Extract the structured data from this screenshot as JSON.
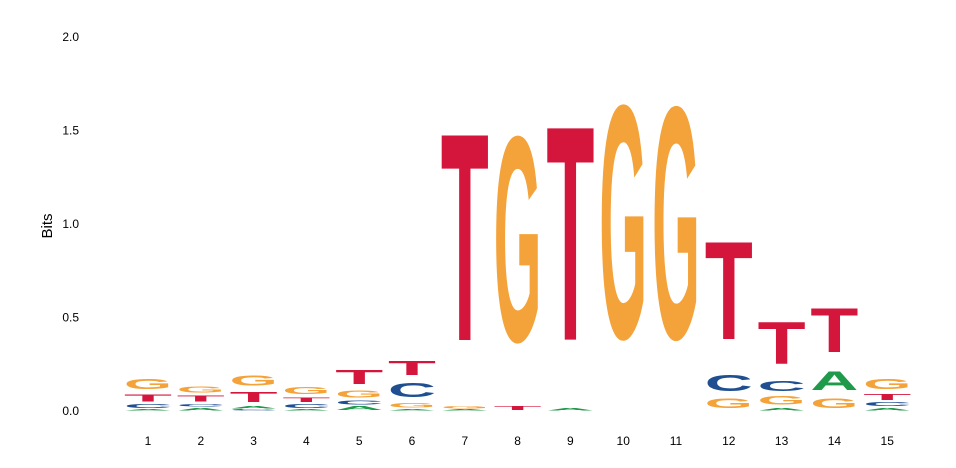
{
  "chart_data": {
    "type": "sequence-logo",
    "title": "",
    "xlabel": "",
    "ylabel": "Bits",
    "ylim": [
      0,
      2.0
    ],
    "yticks": [
      "0.0",
      "0.5",
      "1.0",
      "1.5",
      "2.0"
    ],
    "ytick_values": [
      0,
      0.5,
      1.0,
      1.5,
      2.0
    ],
    "grid": false,
    "colors": {
      "A": "#1f9a4a",
      "C": "#1f4f91",
      "G": "#f4a23a",
      "T": "#d4163c"
    },
    "positions": [
      {
        "label": "1",
        "letters": [
          [
            "A",
            0.01
          ],
          [
            "C",
            0.03
          ],
          [
            "T",
            0.06
          ],
          [
            "G",
            0.09
          ]
        ]
      },
      {
        "label": "2",
        "letters": [
          [
            "A",
            0.02
          ],
          [
            "C",
            0.02
          ],
          [
            "T",
            0.05
          ],
          [
            "G",
            0.05
          ]
        ]
      },
      {
        "label": "3",
        "letters": [
          [
            "C",
            0.01
          ],
          [
            "A",
            0.02
          ],
          [
            "T",
            0.09
          ],
          [
            "G",
            0.09
          ]
        ]
      },
      {
        "label": "4",
        "letters": [
          [
            "A",
            0.01
          ],
          [
            "C",
            0.03
          ],
          [
            "T",
            0.04
          ],
          [
            "G",
            0.06
          ]
        ]
      },
      {
        "label": "5",
        "letters": [
          [
            "A",
            0.03
          ],
          [
            "C",
            0.03
          ],
          [
            "G",
            0.06
          ],
          [
            "T",
            0.12
          ]
        ]
      },
      {
        "label": "6",
        "letters": [
          [
            "A",
            0.01
          ],
          [
            "G",
            0.04
          ],
          [
            "C",
            0.12
          ],
          [
            "T",
            0.12
          ]
        ]
      },
      {
        "label": "7",
        "letters": [
          [
            "A",
            0.01
          ],
          [
            "G",
            0.02
          ],
          [
            "T",
            1.78
          ]
        ]
      },
      {
        "label": "8",
        "letters": [
          [
            "T",
            0.03
          ],
          [
            "G",
            1.76
          ]
        ]
      },
      {
        "label": "9",
        "letters": [
          [
            "A",
            0.02
          ],
          [
            "T",
            1.84
          ]
        ]
      },
      {
        "label": "10",
        "letters": [
          [
            "G",
            2.0
          ]
        ]
      },
      {
        "label": "11",
        "letters": [
          [
            "G",
            1.99
          ]
        ]
      },
      {
        "label": "12",
        "letters": [
          [
            "G",
            0.08
          ],
          [
            "C",
            0.14
          ],
          [
            "T",
            0.84
          ]
        ]
      },
      {
        "label": "13",
        "letters": [
          [
            "A",
            0.02
          ],
          [
            "G",
            0.07
          ],
          [
            "C",
            0.09
          ],
          [
            "T",
            0.36
          ]
        ]
      },
      {
        "label": "14",
        "letters": [
          [
            "G",
            0.08
          ],
          [
            "A",
            0.16
          ],
          [
            "T",
            0.38
          ]
        ]
      },
      {
        "label": "15",
        "letters": [
          [
            "A",
            0.02
          ],
          [
            "C",
            0.03
          ],
          [
            "T",
            0.05
          ],
          [
            "G",
            0.09
          ]
        ]
      }
    ]
  }
}
